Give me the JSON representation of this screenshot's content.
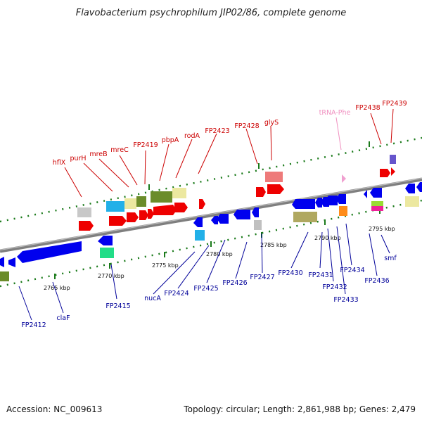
{
  "title": "Flavobacterium psychrophilum JIP02/86, complete genome",
  "accession": "Accession: NC_009613",
  "summary": "Topology: circular; Length: 2,861,988 bp; Genes: 2,479",
  "colors": {
    "upper_label": "#cc0000",
    "lower_label": "#000099",
    "trna_label": "#f090c0",
    "forward_gene": "#ee0000",
    "reverse_gene": "#0000ee",
    "backbone": "#888888",
    "tick": "#1a7a1a"
  },
  "scale": {
    "ticks": [
      "2765 kbp",
      "2770 kbp",
      "2775 kbp",
      "2780 kbp",
      "2785 kbp",
      "2790 kbp",
      "2795 kbp"
    ]
  },
  "upper_labels": [
    "hflX",
    "purH",
    "mreB",
    "mreC",
    "FP2419",
    "pbpA",
    "rodA",
    "FP2423",
    "FP2428",
    "glyS",
    "tRNA-Phe",
    "FP2438",
    "FP2439"
  ],
  "lower_labels": [
    "FP2412",
    "claF",
    "FP2415",
    "nucA",
    "FP2424",
    "FP2425",
    "FP2426",
    "FP2427",
    "FP2430",
    "FP2431",
    "FP2432",
    "FP2433",
    "FP2434",
    "FP2436",
    "smf"
  ]
}
